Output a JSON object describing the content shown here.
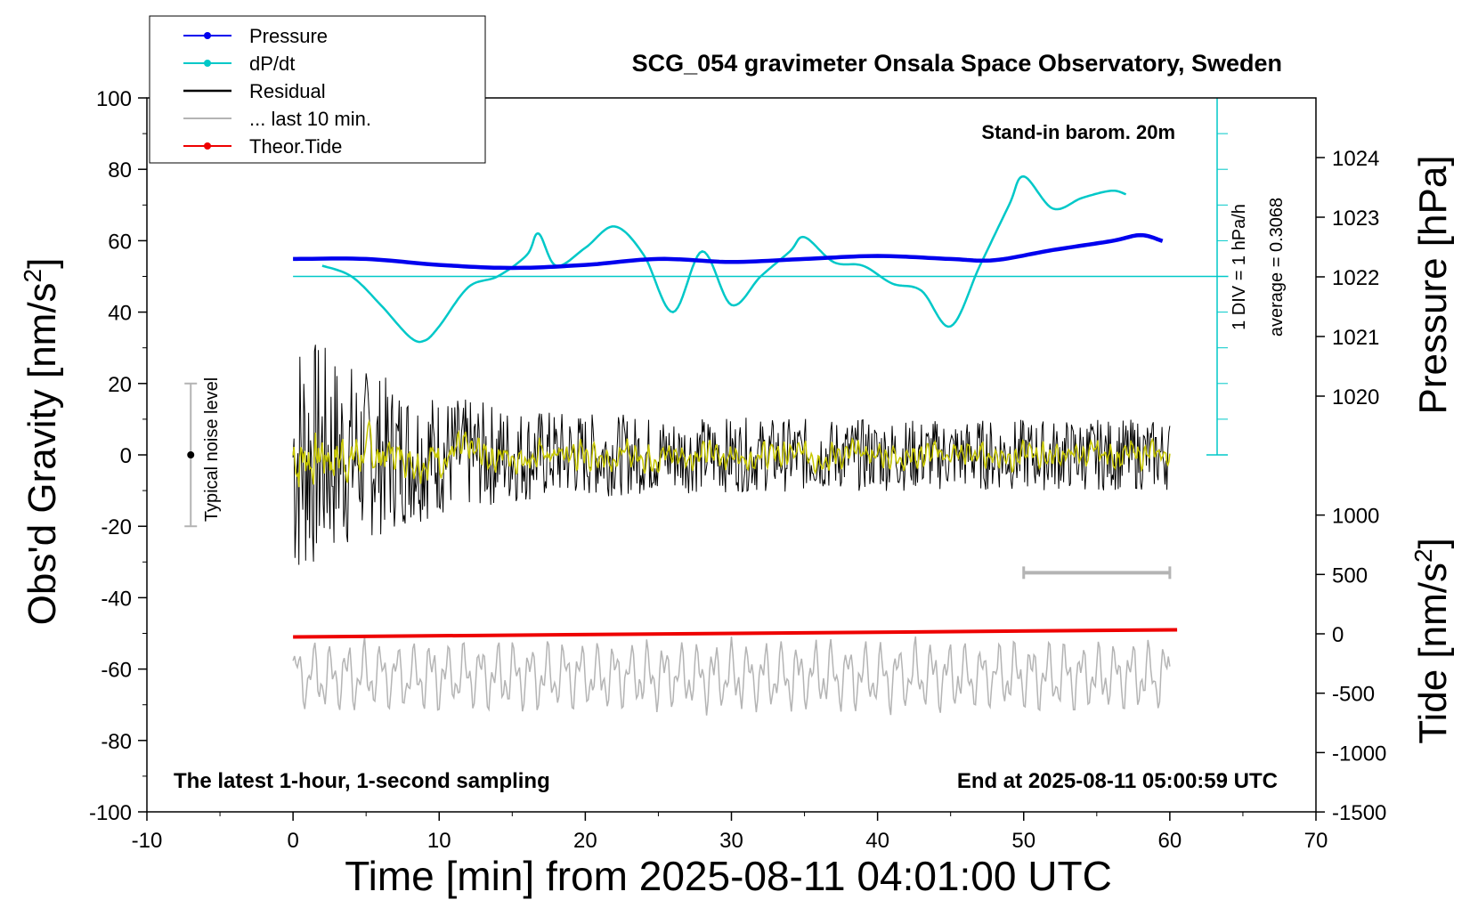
{
  "chart_data": {
    "type": "line",
    "title": "SCG_054 gravimeter Onsala Space Observatory, Sweden",
    "xlabel": "Time [min] from 2025-08-11 04:01:00 UTC",
    "ylabel": "Obs'd Gravity [nm/s",
    "ylabel_sup": "2",
    "ylabel_end": "]",
    "xlim": [
      -10,
      70
    ],
    "ylim": [
      -100,
      100
    ],
    "xticks": [
      "-10",
      "0",
      "10",
      "20",
      "30",
      "40",
      "50",
      "60",
      "70"
    ],
    "yticks": [
      "100",
      "80",
      "60",
      "40",
      "20",
      "0",
      "-20",
      "-40",
      "-60",
      "-80",
      "-100"
    ],
    "pressure_axis": {
      "label": "Pressure [hPa]",
      "ticks": [
        "1024",
        "1023",
        "1022",
        "1021",
        "1020"
      ],
      "tick_values": [
        1024,
        1023,
        1022,
        1021,
        1020
      ],
      "range_note": "1 DIV = 1 hPa/h",
      "average_note": "average = 0.3068"
    },
    "tide_axis": {
      "label": "Tide [nm/s",
      "label_sup": "2",
      "label_end": "]",
      "ticks": [
        "1000",
        "500",
        "0",
        "-500",
        "-1000",
        "-1500"
      ],
      "tick_values": [
        1000,
        500,
        0,
        -500,
        -1000,
        -1500
      ]
    },
    "legend": [
      {
        "name": "Pressure",
        "color": "#0000ee",
        "marker": true
      },
      {
        "name": "dP/dt",
        "color": "#00c8c8",
        "marker": true
      },
      {
        "name": "Residual",
        "color": "#000000",
        "marker": false
      },
      {
        "name": "... last 10 min.",
        "color": "#b4b4b4",
        "marker": false
      },
      {
        "name": "Theor.Tide",
        "color": "#ee0000",
        "marker": true
      }
    ],
    "annotations": {
      "barometer": "Stand-in barom. 20m",
      "noise": "Typical noise level",
      "bottom_left": "The latest 1-hour, 1-second sampling",
      "bottom_right": "End at 2025-08-11 05:00:59 UTC"
    },
    "series": [
      {
        "name": "Pressure",
        "unit": "hPa",
        "color": "#0000ee",
        "x": [
          0,
          5,
          10,
          15,
          20,
          25,
          30,
          35,
          40,
          45,
          48,
          52,
          56,
          58,
          59.5
        ],
        "values": [
          1022.3,
          1022.3,
          1022.2,
          1022.15,
          1022.2,
          1022.3,
          1022.25,
          1022.3,
          1022.35,
          1022.3,
          1022.28,
          1022.45,
          1022.6,
          1022.7,
          1022.6
        ]
      },
      {
        "name": "dP/dt",
        "unit": "gravity-axis units",
        "color": "#00c8c8",
        "x": [
          2,
          4,
          6,
          8,
          9,
          10,
          12,
          14,
          16,
          16.8,
          18,
          20,
          22,
          24,
          26,
          28,
          30,
          32,
          34,
          35,
          37,
          39,
          41,
          43,
          45,
          47,
          49,
          50,
          52,
          54,
          56,
          57
        ],
        "values": [
          53,
          50,
          42,
          33,
          32,
          36,
          47,
          50,
          56,
          62,
          53,
          58,
          64,
          56,
          40,
          57,
          42,
          50,
          57,
          61,
          54,
          53,
          48,
          46,
          36,
          53,
          70,
          78,
          69,
          72,
          74,
          73
        ]
      },
      {
        "name": "dP/dt reference (average)",
        "color": "#00c8c8",
        "x": [
          0,
          64
        ],
        "values": [
          50,
          50
        ]
      },
      {
        "name": "Theor.Tide",
        "unit": "nm/s2",
        "color": "#ee0000",
        "x": [
          0,
          60.5
        ],
        "values": [
          -51,
          -49
        ]
      }
    ],
    "residual": {
      "x_range": [
        0,
        60
      ],
      "mean": 0,
      "amplitude_start": 28,
      "amplitude_end": 10
    },
    "last_10_min_bar": {
      "x_range": [
        50,
        60
      ],
      "y": -33
    },
    "noise_bar": {
      "x": -7,
      "center": 0,
      "half_range": 20
    }
  }
}
